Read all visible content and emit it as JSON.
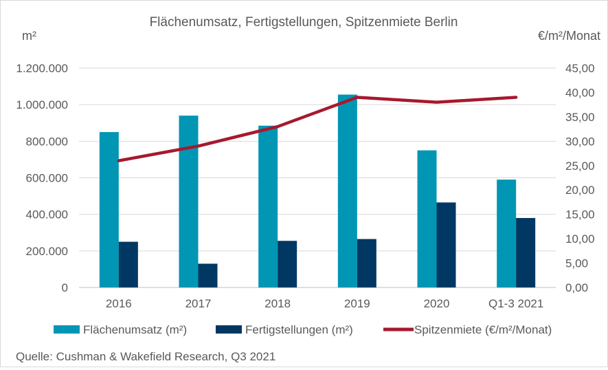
{
  "chart_data": {
    "type": "bar",
    "title": "Flächenumsatz, Fertigstellungen, Spitzenmiete Berlin",
    "categories": [
      "2016",
      "2017",
      "2018",
      "2019",
      "2020",
      "Q1-3 2021"
    ],
    "y_left_unit": "m²",
    "y_right_unit": "€/m²/Monat",
    "ylim_left": [
      0,
      1200000
    ],
    "ylim_right": [
      0,
      45
    ],
    "y_left_ticks": [
      "0",
      "200.000",
      "400.000",
      "600.000",
      "800.000",
      "1.000.000",
      "1.200.000"
    ],
    "y_right_ticks": [
      "0,00",
      "5,00",
      "10,00",
      "15,00",
      "20,00",
      "25,00",
      "30,00",
      "35,00",
      "40,00",
      "45,00"
    ],
    "grid": true,
    "legend_position": "bottom",
    "series": [
      {
        "name": "Flächenumsatz (m²)",
        "type": "bar",
        "axis": "left",
        "color": "#0096b4",
        "values": [
          850000,
          940000,
          885000,
          1055000,
          750000,
          590000
        ]
      },
      {
        "name": "Fertigstellungen (m²)",
        "type": "bar",
        "axis": "left",
        "color": "#003863",
        "values": [
          250000,
          130000,
          255000,
          265000,
          465000,
          380000
        ]
      },
      {
        "name": "Spitzenmiete (€/m²/Monat)",
        "type": "line",
        "axis": "right",
        "color": "#a6192e",
        "values": [
          26.0,
          29.0,
          33.0,
          39.0,
          38.0,
          39.0
        ]
      }
    ],
    "source": "Quelle: Cushman & Wakefield Research, Q3 2021"
  }
}
